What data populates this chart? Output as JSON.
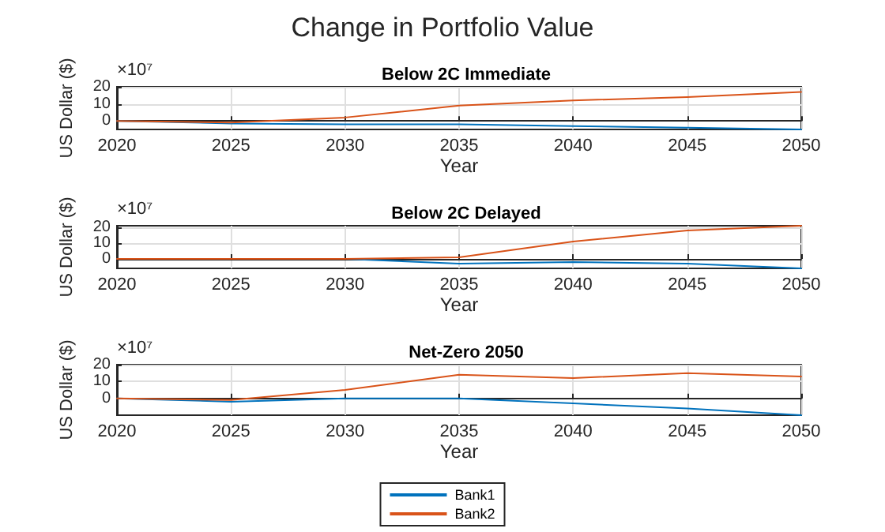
{
  "chart_data": [
    {
      "type": "line",
      "title": "Change in Portfolio Value",
      "subtitle": "Below 2C Immediate",
      "xlabel": "Year",
      "ylabel": "US Dollar ($)",
      "annotations": [
        "×10⁷"
      ],
      "x": [
        2020,
        2025,
        2030,
        2035,
        2040,
        2045,
        2050
      ],
      "xlim": [
        2020,
        2050
      ],
      "xticks": [
        2020,
        2025,
        2030,
        2035,
        2040,
        2045,
        2050
      ],
      "ylim": [
        -5,
        20
      ],
      "yticks": [
        0,
        10,
        20
      ],
      "grid": true,
      "legend": false,
      "series": [
        {
          "color": "#0072bd",
          "values": [
            0,
            -1.5,
            -2,
            -2,
            -3,
            -4,
            -5
          ]
        },
        {
          "color": "#d95319",
          "values": [
            0,
            -1,
            2,
            9,
            12,
            14,
            17
          ]
        }
      ]
    },
    {
      "type": "line",
      "subtitle": "Below 2C Delayed",
      "xlabel": "Year",
      "ylabel": "US Dollar ($)",
      "annotations": [
        "×10⁷"
      ],
      "x": [
        2020,
        2025,
        2030,
        2035,
        2040,
        2045,
        2050
      ],
      "xlim": [
        2020,
        2050
      ],
      "xticks": [
        2020,
        2025,
        2030,
        2035,
        2040,
        2045,
        2050
      ],
      "ylim": [
        -6,
        21
      ],
      "yticks": [
        0,
        10,
        20
      ],
      "grid": true,
      "legend": false,
      "series": [
        {
          "color": "#0072bd",
          "values": [
            0,
            0,
            0,
            -3,
            -2,
            -3,
            -6
          ]
        },
        {
          "color": "#d95319",
          "values": [
            0,
            0,
            0,
            1,
            11,
            18,
            21
          ]
        }
      ]
    },
    {
      "type": "line",
      "subtitle": "Net-Zero 2050",
      "xlabel": "Year",
      "ylabel": "US Dollar ($)",
      "annotations": [
        "×10⁷"
      ],
      "x": [
        2020,
        2025,
        2030,
        2035,
        2040,
        2045,
        2050
      ],
      "xlim": [
        2020,
        2050
      ],
      "xticks": [
        2020,
        2025,
        2030,
        2035,
        2040,
        2045,
        2050
      ],
      "ylim": [
        -10,
        20
      ],
      "yticks": [
        0,
        10,
        20
      ],
      "grid": true,
      "legend": "bottom",
      "series": [
        {
          "name": "Bank1",
          "color": "#0072bd",
          "values": [
            0,
            -2,
            0,
            0,
            -3,
            -6,
            -10
          ]
        },
        {
          "name": "Bank2",
          "color": "#d95319",
          "values": [
            0,
            -1,
            5,
            14,
            12,
            15,
            13
          ]
        }
      ]
    }
  ]
}
